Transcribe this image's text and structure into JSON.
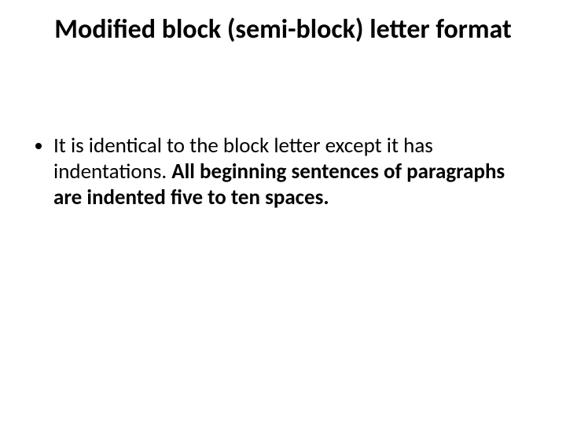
{
  "slide": {
    "title": "Modified block (semi-block) letter format",
    "bullets": [
      {
        "text_normal": "It is identical to the block letter except it has indentations. ",
        "text_bold": "All beginning sentences of paragraphs are indented five to ten spaces."
      }
    ]
  },
  "style": {
    "background_color": "#ffffff",
    "text_color": "#000000",
    "title_fontsize": 34,
    "title_weight": 700,
    "body_fontsize": 27,
    "font_family": "Calibri"
  }
}
